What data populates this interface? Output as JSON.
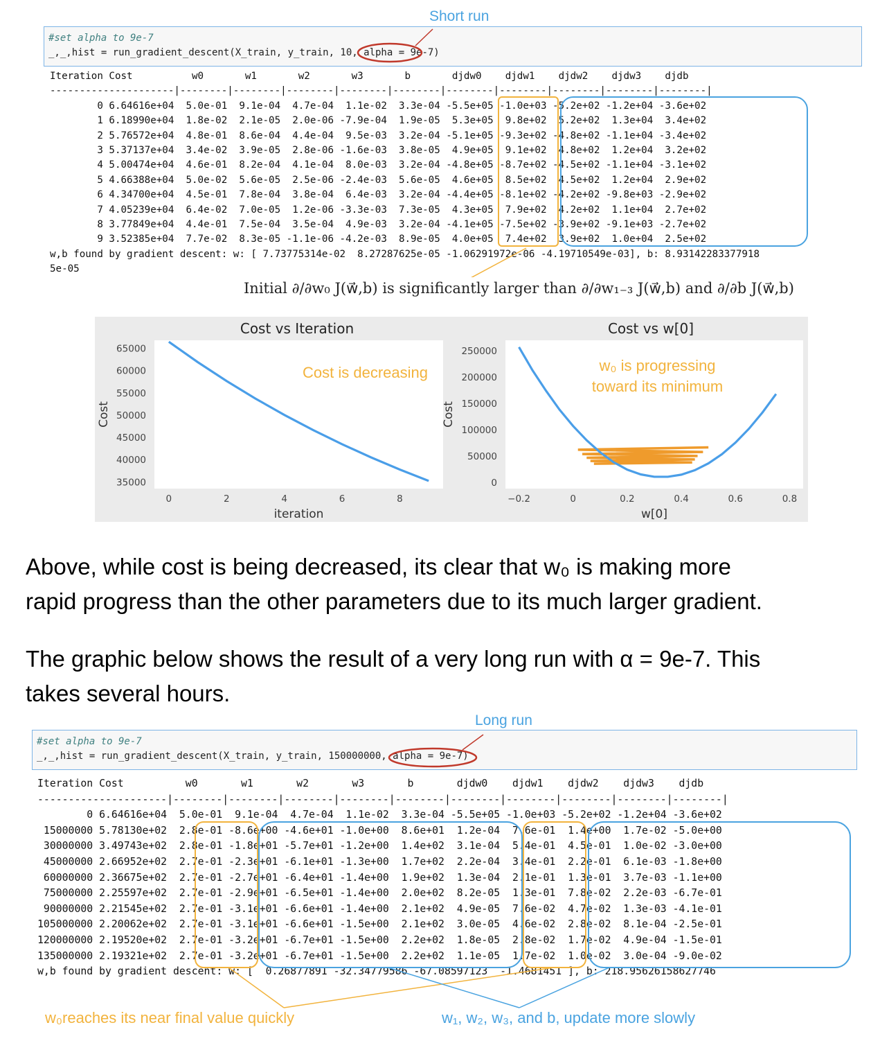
{
  "short_run": {
    "label": "Short run",
    "code_comment": "#set alpha to 9e-7",
    "code_line": "_,_,hist = run_gradient_descent(X_train, y_train, 10, alpha = 9e-7)",
    "output": "Iteration Cost          w0       w1       w2       w3       b       djdw0    djdw1    djdw2    djdw3    djdb  \n---------------------|--------|--------|--------|--------|--------|--------|--------|--------|--------|--------|\n        0 6.64616e+04  5.0e-01  9.1e-04  4.7e-04  1.1e-02  3.3e-04 -5.5e+05 -1.0e+03 -5.2e+02 -1.2e+04 -3.6e+02\n        1 6.18990e+04  1.8e-02  2.1e-05  2.0e-06 -7.9e-04  1.9e-05  5.3e+05  9.8e+02  5.2e+02  1.3e+04  3.4e+02\n        2 5.76572e+04  4.8e-01  8.6e-04  4.4e-04  9.5e-03  3.2e-04 -5.1e+05 -9.3e+02 -4.8e+02 -1.1e+04 -3.4e+02\n        3 5.37137e+04  3.4e-02  3.9e-05  2.8e-06 -1.6e-03  3.8e-05  4.9e+05  9.1e+02  4.8e+02  1.2e+04  3.2e+02\n        4 5.00474e+04  4.6e-01  8.2e-04  4.1e-04  8.0e-03  3.2e-04 -4.8e+05 -8.7e+02 -4.5e+02 -1.1e+04 -3.1e+02\n        5 4.66388e+04  5.0e-02  5.6e-05  2.5e-06 -2.4e-03  5.6e-05  4.6e+05  8.5e+02  4.5e+02  1.2e+04  2.9e+02\n        6 4.34700e+04  4.5e-01  7.8e-04  3.8e-04  6.4e-03  3.2e-04 -4.4e+05 -8.1e+02 -4.2e+02 -9.8e+03 -2.9e+02\n        7 4.05239e+04  6.4e-02  7.0e-05  1.2e-06 -3.3e-03  7.3e-05  4.3e+05  7.9e+02  4.2e+02  1.1e+04  2.7e+02\n        8 3.77849e+04  4.4e-01  7.5e-04  3.5e-04  4.9e-03  3.2e-04 -4.1e+05 -7.5e+02 -3.9e+02 -9.1e+03 -2.7e+02\n        9 3.52385e+04  7.7e-02  8.3e-05 -1.1e-06 -4.2e-03  8.9e-05  4.0e+05  7.4e+02  3.9e+02  1.0e+04  2.5e+02\nw,b found by gradient descent: w: [ 7.73775314e-02  8.27287625e-05 -1.06291972e-06 -4.19710549e-03], b: 8.93142283377918\n5e-05",
    "initial_note": "Initial ∂/∂w₀ J(w⃗,b) is significantly larger than ∂/∂w₁₋₃ J(w⃗,b) and ∂/∂b J(w⃗,b)"
  },
  "charts_panel": {
    "annotation_cost": "Cost is decreasing",
    "annotation_w0": "w₀ is progressing toward its minimum"
  },
  "chart_data": [
    {
      "type": "line",
      "title": "Cost vs Iteration",
      "xlabel": "iteration",
      "ylabel": "Cost",
      "x": [
        0,
        1,
        2,
        3,
        4,
        5,
        6,
        7,
        8,
        9
      ],
      "y": [
        66461.6,
        61899.0,
        57657.2,
        53713.7,
        50047.4,
        46638.8,
        43470.0,
        40523.9,
        37784.9,
        35238.5
      ],
      "xlim": [
        -0.5,
        9.5
      ],
      "ylim": [
        33500,
        66800
      ],
      "xticks": [
        0,
        2,
        4,
        6,
        8
      ],
      "yticks": [
        35000,
        40000,
        45000,
        50000,
        55000,
        60000,
        65000
      ],
      "color": "#4a9ee8",
      "grid": false
    },
    {
      "type": "line",
      "title": "Cost vs w[0]",
      "xlabel": "w[0]",
      "ylabel": "Cost",
      "curve_x": [
        -0.2,
        -0.15,
        -0.1,
        -0.05,
        0.0,
        0.05,
        0.1,
        0.15,
        0.2,
        0.25,
        0.3,
        0.35,
        0.4,
        0.45,
        0.5,
        0.55,
        0.6,
        0.65,
        0.7,
        0.75
      ],
      "curve_y": [
        257000,
        213000,
        174000,
        138000,
        107000,
        80000,
        57000,
        38000,
        24000,
        15000,
        10500,
        10500,
        14500,
        23000,
        36000,
        53500,
        75500,
        102000,
        133000,
        168000
      ],
      "path_x": [
        0.5,
        0.018,
        0.48,
        0.034,
        0.46,
        0.05,
        0.45,
        0.064,
        0.44,
        0.077
      ],
      "path_y": [
        66461.6,
        61899.0,
        57657.2,
        53713.7,
        50047.4,
        46638.8,
        43470.0,
        40523.9,
        37784.9,
        35238.5
      ],
      "xlim": [
        -0.25,
        0.85
      ],
      "ylim": [
        -12000,
        270000
      ],
      "xticks": [
        -0.2,
        0.0,
        0.2,
        0.4,
        0.6,
        0.8
      ],
      "yticks": [
        0,
        50000,
        100000,
        150000,
        200000,
        250000
      ],
      "colors": {
        "curve": "#4a9ee8",
        "path": "#ef9b2c"
      },
      "grid": false
    }
  ],
  "prose": {
    "p1_line1": "Above, while cost is being decreased, its clear that w₀ is making more",
    "p1_line2": "rapid progress than the other parameters due to its much larger gradient.",
    "p2_line1": "The graphic below shows the result of a very long run with α = 9e-7. This",
    "p2_line2": "takes several hours."
  },
  "long_run": {
    "label": "Long run",
    "code_comment": "#set alpha to 9e-7",
    "code_line": "_,_,hist = run_gradient_descent(X_train, y_train, 150000000, alpha = 9e-7)",
    "output": "Iteration Cost          w0       w1       w2       w3       b       djdw0    djdw1    djdw2    djdw3    djdb  \n---------------------|--------|--------|--------|--------|--------|--------|--------|--------|--------|--------|\n        0 6.64616e+04  5.0e-01  9.1e-04  4.7e-04  1.1e-02  3.3e-04 -5.5e+05 -1.0e+03 -5.2e+02 -1.2e+04 -3.6e+02\n 15000000 5.78130e+02  2.8e-01 -8.6e+00 -4.6e+01 -1.0e+00  8.6e+01  1.2e-04  7.6e-01  1.4e+00  1.7e-02 -5.0e+00\n 30000000 3.49743e+02  2.8e-01 -1.8e+01 -5.7e+01 -1.2e+00  1.4e+02  3.1e-04  5.4e-01  4.5e-01  1.0e-02 -3.0e+00\n 45000000 2.66952e+02  2.7e-01 -2.3e+01 -6.1e+01 -1.3e+00  1.7e+02  2.2e-04  3.4e-01  2.2e-01  6.1e-03 -1.8e+00\n 60000000 2.36675e+02  2.7e-01 -2.7e+01 -6.4e+01 -1.4e+00  1.9e+02  1.3e-04  2.1e-01  1.3e-01  3.7e-03 -1.1e+00\n 75000000 2.25597e+02  2.7e-01 -2.9e+01 -6.5e+01 -1.4e+00  2.0e+02  8.2e-05  1.3e-01  7.8e-02  2.2e-03 -6.7e-01\n 90000000 2.21545e+02  2.7e-01 -3.1e+01 -6.6e+01 -1.4e+00  2.1e+02  4.9e-05  7.6e-02  4.7e-02  1.3e-03 -4.1e-01\n105000000 2.20062e+02  2.7e-01 -3.1e+01 -6.6e+01 -1.5e+00  2.1e+02  3.0e-05  4.6e-02  2.8e-02  8.1e-04 -2.5e-01\n120000000 2.19520e+02  2.7e-01 -3.2e+01 -6.7e+01 -1.5e+00  2.2e+02  1.8e-05  2.8e-02  1.7e-02  4.9e-04 -1.5e-01\n135000000 2.19321e+02  2.7e-01 -3.2e+01 -6.7e+01 -1.5e+00  2.2e+02  1.1e-05  1.7e-02  1.0e-02  3.0e-04 -9.0e-02\nw,b found by gradient descent: w: [  0.26877891 -32.34779586 -67.08597123  -1.4681451 ], b: 218.95626158627746",
    "annotation_w0": "w₀reaches its near final value quickly",
    "annotation_others": "w₁, w₂, w₃, and b, update more slowly"
  }
}
